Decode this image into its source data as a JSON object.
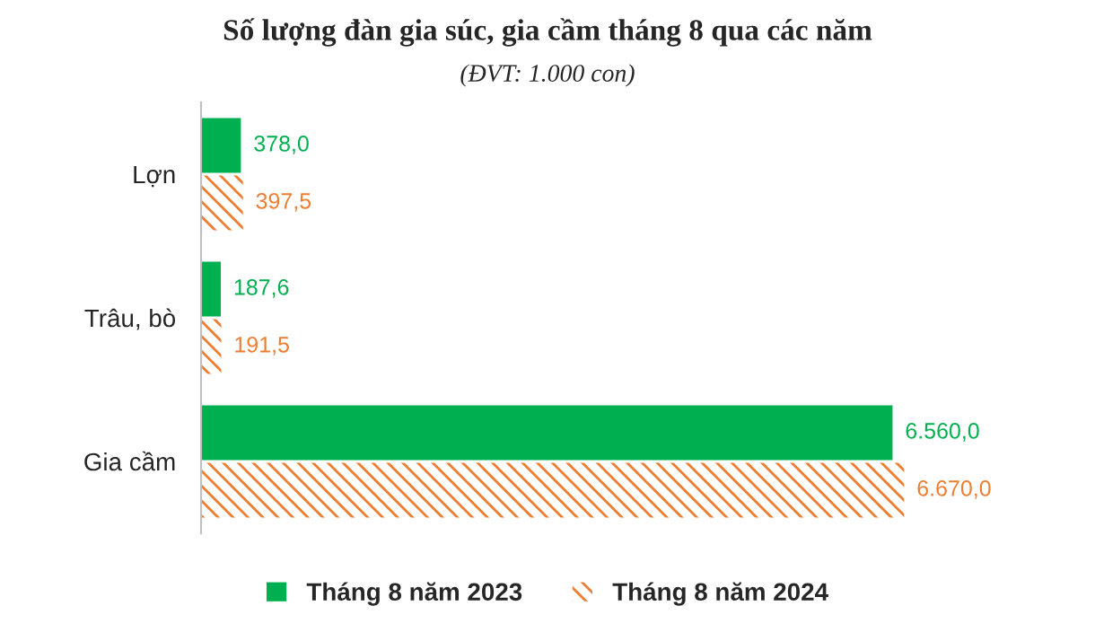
{
  "chart_data": {
    "type": "bar",
    "orientation": "horizontal",
    "title": "Số lượng đàn gia súc, gia cầm tháng 8 qua các năm",
    "subtitle": "(ĐVT: 1.000 con)",
    "categories": [
      "Lợn",
      "Trâu, bò",
      "Gia cầm"
    ],
    "series": [
      {
        "name": "Tháng 8 năm 2023",
        "color": "#00b050",
        "values": [
          378.0,
          187.6,
          6560.0
        ],
        "value_labels": [
          "378,0",
          "187,6",
          "6.560,0"
        ]
      },
      {
        "name": "Tháng 8 năm 2024",
        "color": "#ed7d31",
        "values": [
          397.5,
          191.5,
          6670.0
        ],
        "value_labels": [
          "397,5",
          "191,5",
          "6.670,0"
        ]
      }
    ],
    "legend": "bottom",
    "grid": false
  }
}
